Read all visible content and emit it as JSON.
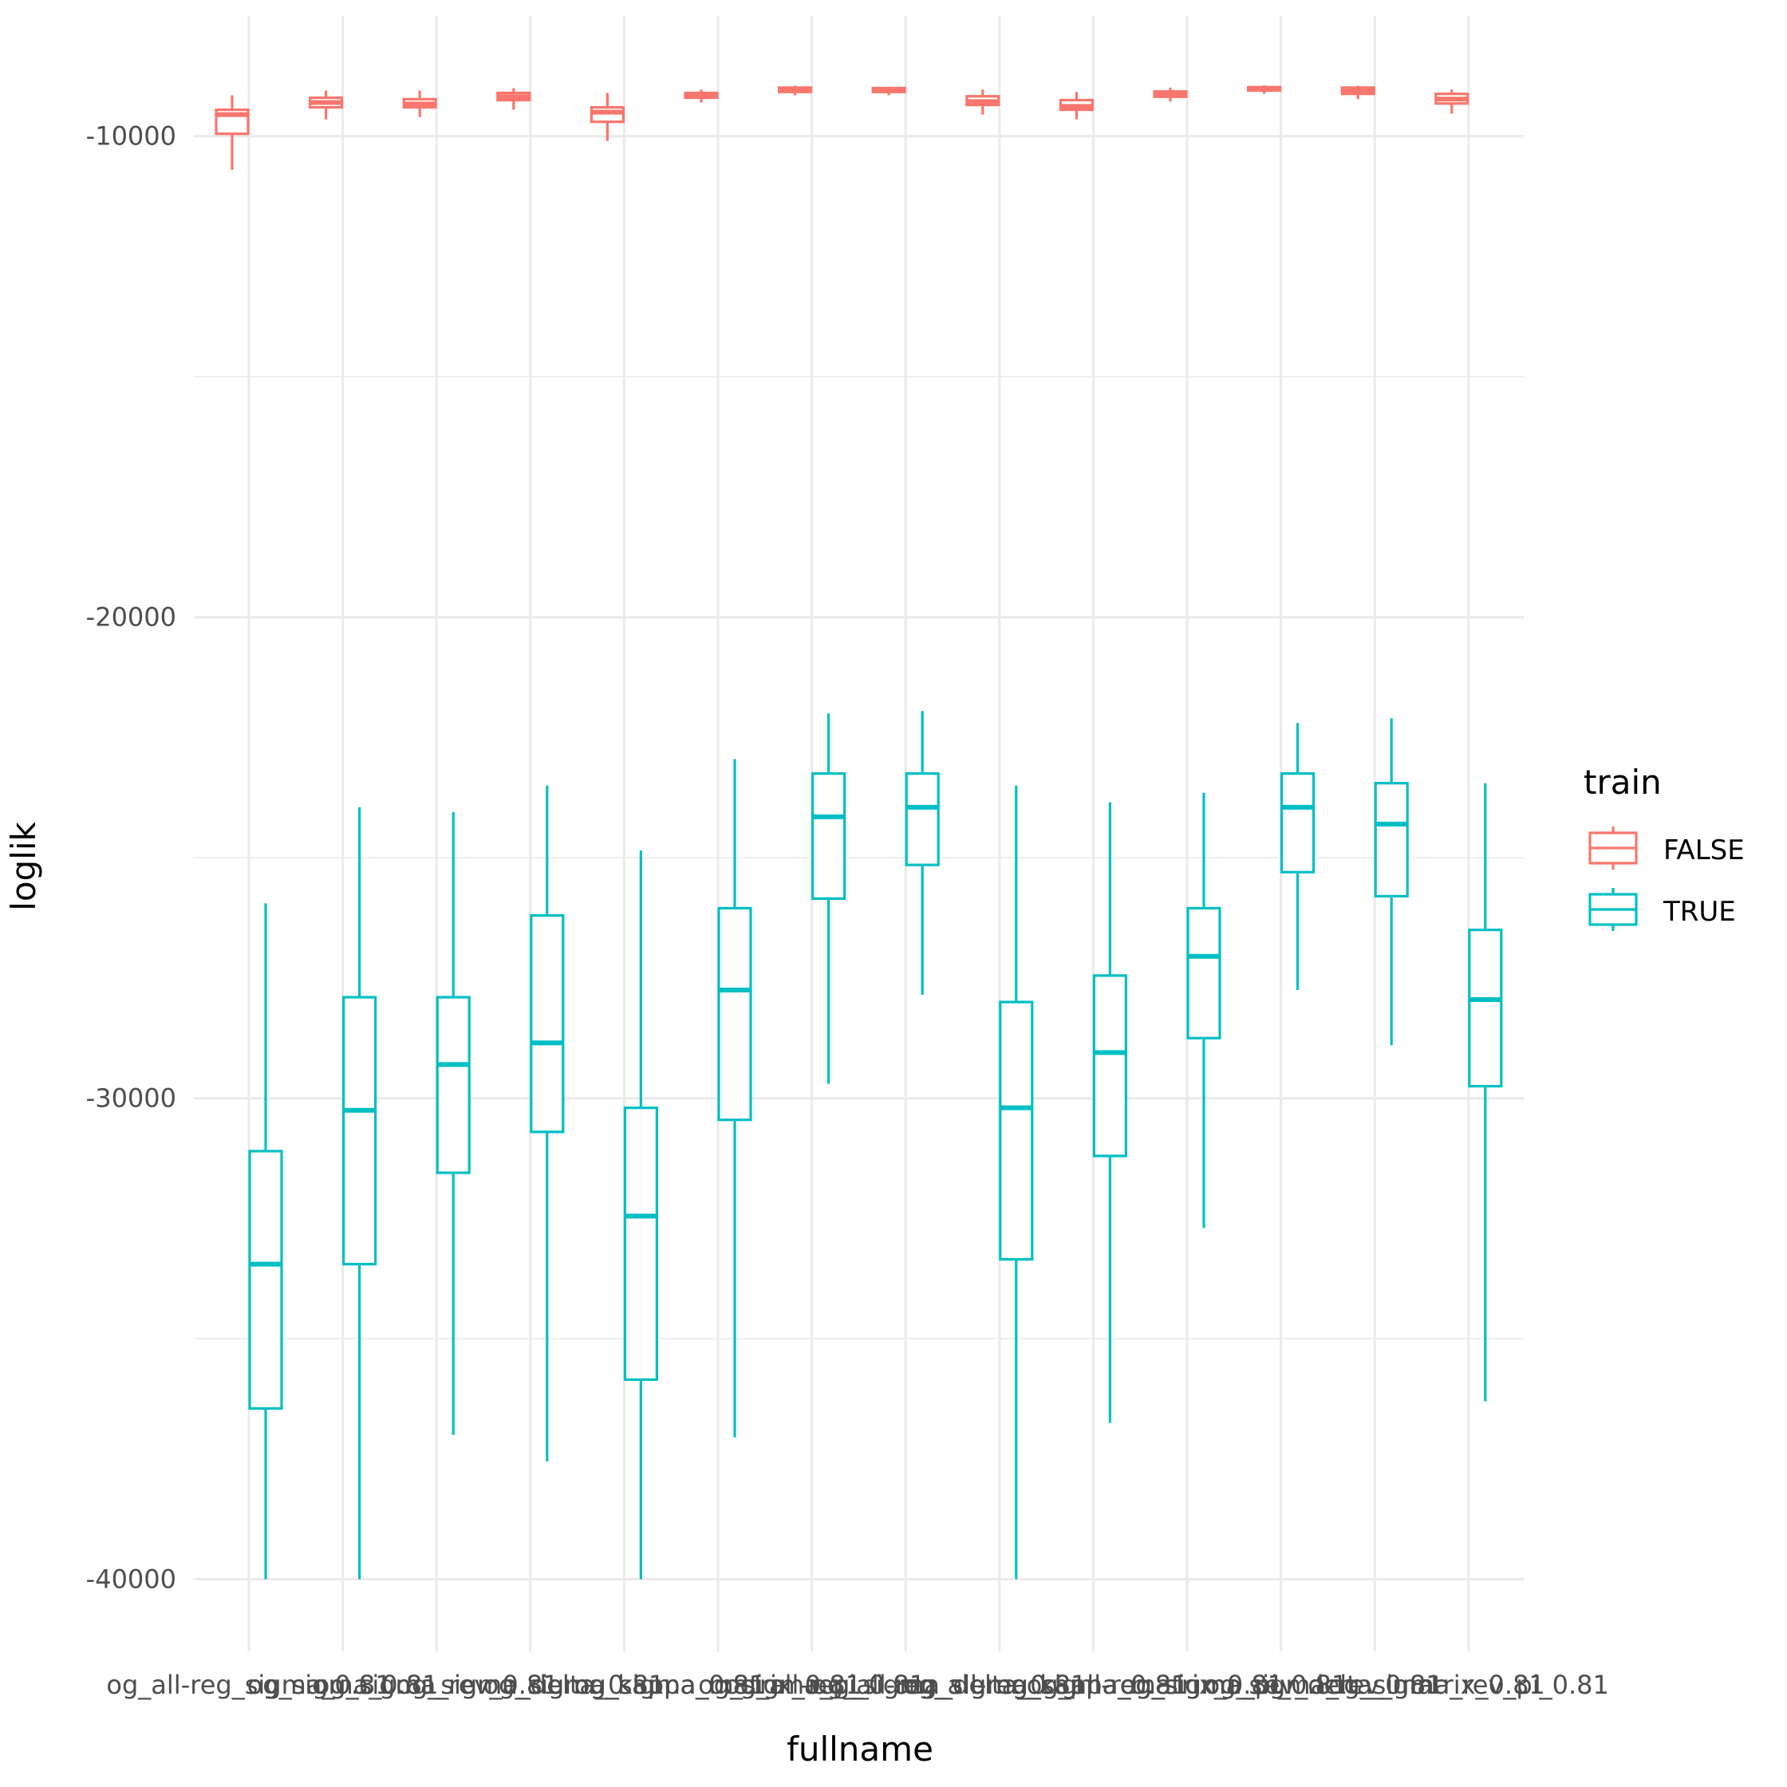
{
  "chart_data": {
    "type": "boxplot",
    "xlabel": "fullname",
    "ylabel": "loglik",
    "ylim": [
      -41500,
      -7500
    ],
    "yticks": [
      -10000,
      -20000,
      -30000,
      -40000
    ],
    "y_tick_labels": [
      "-10000",
      "-20000",
      "-30000",
      "-40000"
    ],
    "y_minor_ticks": [
      -15000,
      -25000,
      -35000
    ],
    "categories": [
      "og_all-reg_sigma_0.81",
      "og_all-reg_sigma_delta_0.81",
      "og_all-reg_sigma_kappa_0.81",
      "og_all-reg_sigma_matrix_0.81",
      "og_all-reg_sigma_pi_0.81",
      "og_sigma_0.81",
      "og_sigma_delta_0.81",
      "og_sigma_kappa_0.81",
      "og_sigma_matrix_0.81",
      "og_sigma_pi_0.81",
      "og_sigma_rev_0.81",
      "og_sigma_rev_delta_0.81",
      "og_sigma_rev_matrix_0.81",
      "og_sigma_rev_pi_0.81"
    ],
    "x_tick_labels_printed": [
      "og_all-reg_sigma_0.81",
      "og_sigma_0.81",
      "og_sigma_rev_0.81",
      "og_sigma_delta_0.81",
      "og_sigma_kappa_0.81",
      "og_sigma_matrix_0.81",
      "og_sigma_pi_0.81",
      "og_all-reg_sigma_delta_0.81",
      "og_all-reg_sigma_kappa_0.81",
      "og_all-reg_sigma_matrix_0.81",
      "og_all-reg_sigma_pi_0.81",
      "og_sigma_rev_delta_0.81",
      "og_sigma_rev_matrix_0.81",
      "og_sigma_rev_pi_0.81"
    ],
    "legend": {
      "title": "train",
      "placement": "right",
      "entries": [
        {
          "label": "FALSE",
          "color": "#F8766D"
        },
        {
          "label": "TRUE",
          "color": "#00BFC4"
        }
      ]
    },
    "series": [
      {
        "name": "FALSE",
        "color": "#F8766D",
        "boxes": [
          {
            "min": -10700,
            "q1": -9950,
            "median": -9550,
            "q3": -9450,
            "max": -9150
          },
          {
            "min": -9650,
            "q1": -9400,
            "median": -9300,
            "q3": -9200,
            "max": -9050
          },
          {
            "min": -9600,
            "q1": -9400,
            "median": -9330,
            "q3": -9230,
            "max": -9050
          },
          {
            "min": -9450,
            "q1": -9250,
            "median": -9180,
            "q3": -9100,
            "max": -9000
          },
          {
            "min": -10100,
            "q1": -9700,
            "median": -9500,
            "q3": -9400,
            "max": -9100
          },
          {
            "min": -9300,
            "q1": -9200,
            "median": -9150,
            "q3": -9100,
            "max": -9030
          },
          {
            "min": -9150,
            "q1": -9080,
            "median": -9030,
            "q3": -8990,
            "max": -8950
          },
          {
            "min": -9150,
            "q1": -9080,
            "median": -9030,
            "q3": -9000,
            "max": -8970
          },
          {
            "min": -9550,
            "q1": -9350,
            "median": -9280,
            "q3": -9170,
            "max": -9030
          },
          {
            "min": -9650,
            "q1": -9450,
            "median": -9380,
            "q3": -9250,
            "max": -9080
          },
          {
            "min": -9280,
            "q1": -9180,
            "median": -9120,
            "q3": -9070,
            "max": -8990
          },
          {
            "min": -9120,
            "q1": -9050,
            "median": -9020,
            "q3": -8980,
            "max": -8940
          },
          {
            "min": -9230,
            "q1": -9120,
            "median": -9060,
            "q3": -8990,
            "max": -8950
          },
          {
            "min": -9530,
            "q1": -9320,
            "median": -9230,
            "q3": -9120,
            "max": -9030
          }
        ]
      },
      {
        "name": "TRUE",
        "color": "#00BFC4",
        "boxes": [
          {
            "min": -40000,
            "q1": -36450,
            "median": -33450,
            "q3": -31100,
            "max": -25950
          },
          {
            "min": -40000,
            "q1": -33450,
            "median": -30250,
            "q3": -27900,
            "max": -23950
          },
          {
            "min": -37000,
            "q1": -31550,
            "median": -29300,
            "q3": -27900,
            "max": -24050
          },
          {
            "min": -37550,
            "q1": -30700,
            "median": -28850,
            "q3": -26200,
            "max": -23500
          },
          {
            "min": -40000,
            "q1": -35850,
            "median": -32450,
            "q3": -30200,
            "max": -24850
          },
          {
            "min": -37050,
            "q1": -30450,
            "median": -27750,
            "q3": -26050,
            "max": -22950
          },
          {
            "min": -29700,
            "q1": -25850,
            "median": -24150,
            "q3": -23250,
            "max": -22000
          },
          {
            "min": -27850,
            "q1": -25150,
            "median": -23950,
            "q3": -23250,
            "max": -21950
          },
          {
            "min": -40000,
            "q1": -33350,
            "median": -30200,
            "q3": -28000,
            "max": -23500
          },
          {
            "min": -36750,
            "q1": -31200,
            "median": -29050,
            "q3": -27450,
            "max": -23850
          },
          {
            "min": -32700,
            "q1": -28750,
            "median": -27050,
            "q3": -26050,
            "max": -23650
          },
          {
            "min": -27750,
            "q1": -25300,
            "median": -23950,
            "q3": -23250,
            "max": -22200
          },
          {
            "min": -28900,
            "q1": -25800,
            "median": -24300,
            "q3": -23450,
            "max": -22100
          },
          {
            "min": -36300,
            "q1": -29750,
            "median": -27950,
            "q3": -26500,
            "max": -23450
          }
        ]
      }
    ],
    "grid": true
  }
}
